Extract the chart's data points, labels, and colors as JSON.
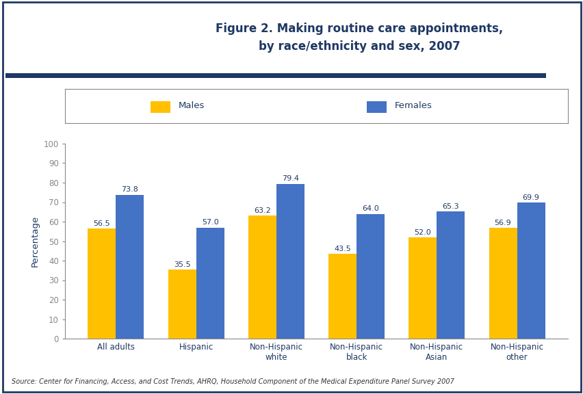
{
  "title_line1": "Figure 2. Making routine care appointments,",
  "title_line2": "by race/ethnicity and sex, 2007",
  "categories": [
    "All adults",
    "Hispanic",
    "Non-Hispanic\nwhite",
    "Non-Hispanic\nblack",
    "Non-Hispanic\nAsian",
    "Non-Hispanic\nother"
  ],
  "males": [
    56.5,
    35.5,
    63.2,
    43.5,
    52.0,
    56.9
  ],
  "females": [
    73.8,
    57.0,
    79.4,
    64.0,
    65.3,
    69.9
  ],
  "male_color": "#FFC000",
  "female_color": "#4472C4",
  "ylabel": "Percentage",
  "ylim": [
    0,
    100
  ],
  "yticks": [
    0,
    10,
    20,
    30,
    40,
    50,
    60,
    70,
    80,
    90,
    100
  ],
  "source": "Source: Center for Financing, Access, and Cost Trends, AHRQ, Household Component of the Medical Expenditure Panel Survey 2007",
  "title_color": "#1F3864",
  "background_color": "#FFFFFF",
  "bar_width": 0.35,
  "legend_labels": [
    "Males",
    "Females"
  ],
  "separator_color": "#1F3864",
  "border_color": "#1F3864"
}
